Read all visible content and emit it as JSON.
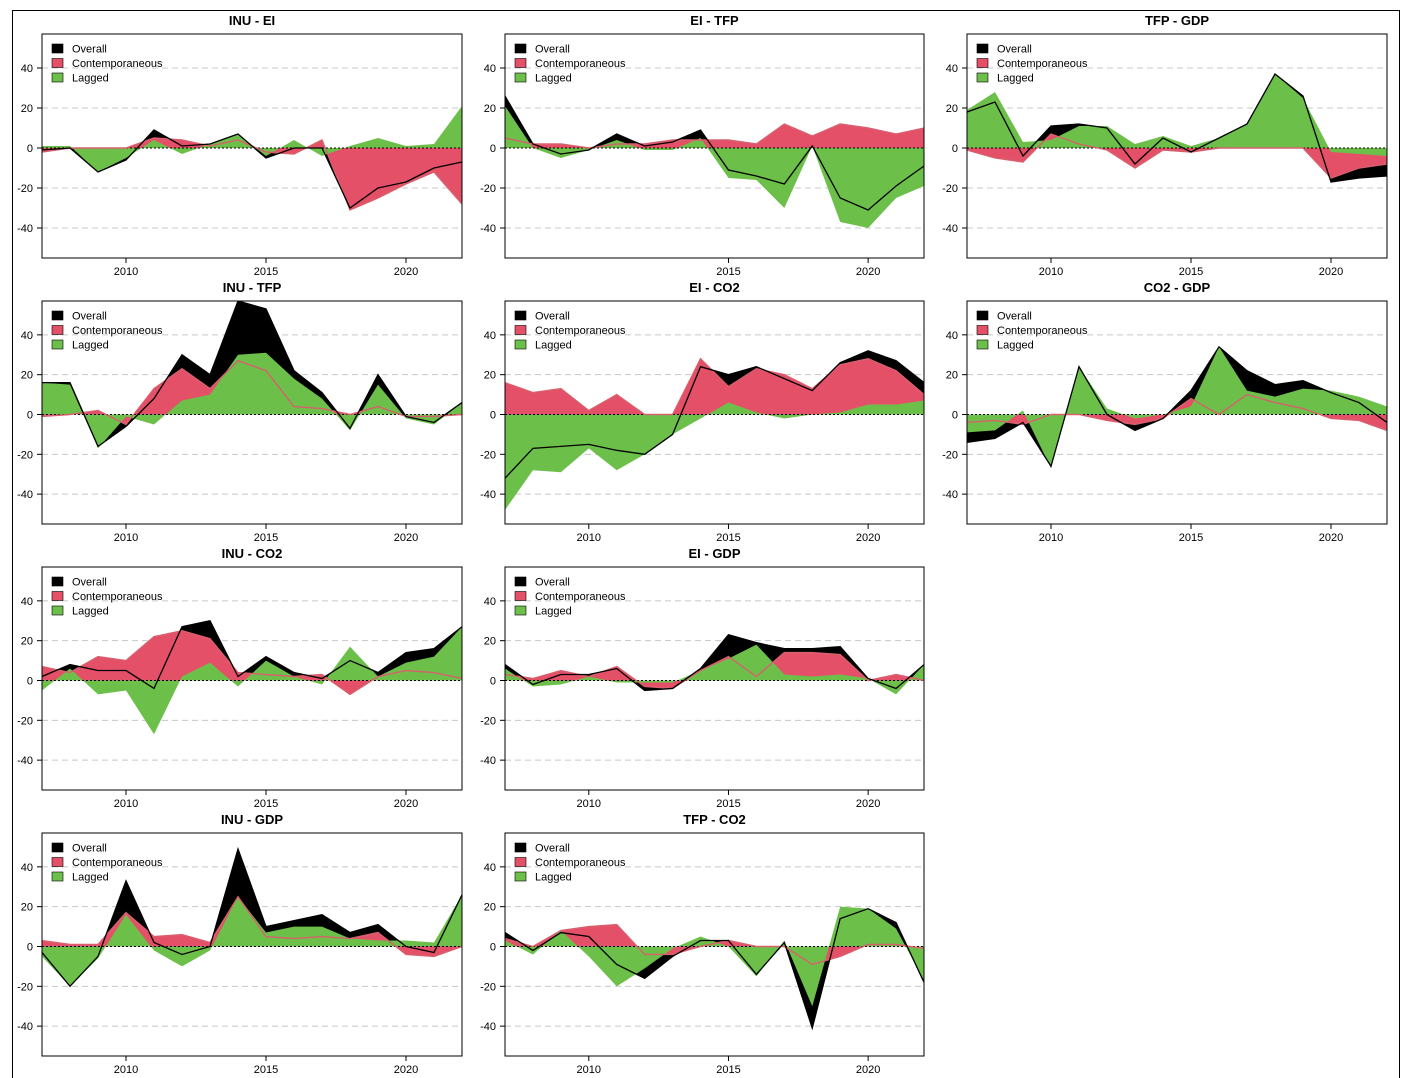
{
  "colors": {
    "overall": "#000000",
    "contemporaneous": "#e45068",
    "lagged": "#6cc04a"
  },
  "legend_labels": {
    "overall": "Overall",
    "contemporaneous": "Contemporaneous",
    "lagged": "Lagged"
  },
  "chart_data": [
    {
      "type": "area",
      "title": "INU - EI",
      "x": [
        2007,
        2008,
        2009,
        2010,
        2011,
        2012,
        2013,
        2014,
        2015,
        2016,
        2017,
        2018,
        2019,
        2020,
        2021,
        2022
      ],
      "series": [
        {
          "name": "Contemporaneous",
          "values": [
            -2,
            0,
            0,
            0,
            5,
            4,
            1,
            4,
            -2,
            -3,
            4,
            -31,
            -25,
            -18,
            -12,
            -28
          ]
        },
        {
          "name": "Lagged",
          "values": [
            1,
            1,
            -12,
            -5,
            4,
            -3,
            2,
            7,
            -4,
            4,
            -4,
            1,
            5,
            1,
            2,
            21
          ]
        },
        {
          "name": "Overall",
          "values": [
            -1,
            0,
            -12,
            -6,
            9,
            1,
            2,
            7,
            -5,
            0,
            0,
            -30,
            -20,
            -17,
            -10,
            -7
          ]
        }
      ],
      "xticks": [
        2010,
        2015,
        2020
      ],
      "yticks": [
        -40,
        -20,
        0,
        20,
        40
      ],
      "ylim": [
        -55,
        57
      ],
      "xlim": [
        2007,
        2022
      ],
      "legend_position": "top-left"
    },
    {
      "type": "area",
      "title": "EI - TFP",
      "x": [
        2007,
        2008,
        2009,
        2010,
        2011,
        2012,
        2013,
        2014,
        2015,
        2016,
        2017,
        2018,
        2019,
        2020,
        2021,
        2022
      ],
      "series": [
        {
          "name": "Contemporaneous",
          "values": [
            5,
            2,
            2,
            0,
            2,
            2,
            4,
            4,
            4,
            2,
            12,
            6,
            12,
            10,
            7,
            10
          ]
        },
        {
          "name": "Lagged",
          "values": [
            21,
            0,
            -5,
            -1,
            4,
            -1,
            -1,
            5,
            -15,
            -16,
            -30,
            1,
            -37,
            -40,
            -25,
            -19
          ]
        },
        {
          "name": "Overall",
          "values": [
            26,
            2,
            -3,
            -1,
            7,
            1,
            3,
            9,
            -11,
            -14,
            -18,
            1,
            -25,
            -31,
            -19,
            -9
          ]
        }
      ],
      "xticks": [
        2015,
        2020
      ],
      "yticks": [
        -40,
        -20,
        0,
        20,
        40
      ],
      "ylim": [
        -55,
        57
      ],
      "xlim": [
        2007,
        2022
      ],
      "legend_position": "top-left"
    },
    {
      "type": "area",
      "title": "TFP - GDP",
      "x": [
        2007,
        2008,
        2009,
        2010,
        2011,
        2012,
        2013,
        2014,
        2015,
        2016,
        2017,
        2018,
        2019,
        2020,
        2021,
        2022
      ],
      "series": [
        {
          "name": "Contemporaneous",
          "values": [
            -1,
            -5,
            -7,
            7,
            2,
            -1,
            -10,
            -1,
            -2,
            0,
            0,
            0,
            0,
            -15,
            -10,
            -8
          ]
        },
        {
          "name": "Lagged",
          "values": [
            19,
            28,
            3,
            4,
            11,
            11,
            2,
            6,
            1,
            5,
            12,
            37,
            25,
            -2,
            -3,
            -4
          ]
        },
        {
          "name": "Overall",
          "values": [
            18,
            23,
            -4,
            11,
            12,
            10,
            -8,
            5,
            -2,
            5,
            12,
            37,
            26,
            -17,
            -15,
            -14
          ]
        }
      ],
      "xticks": [
        2010,
        2015,
        2020
      ],
      "yticks": [
        -40,
        -20,
        0,
        20,
        40
      ],
      "ylim": [
        -55,
        57
      ],
      "xlim": [
        2007,
        2022
      ],
      "legend_position": "top-left"
    },
    {
      "type": "area",
      "title": "INU - TFP",
      "x": [
        2007,
        2008,
        2009,
        2010,
        2011,
        2012,
        2013,
        2014,
        2015,
        2016,
        2017,
        2018,
        2019,
        2020,
        2021,
        2022
      ],
      "series": [
        {
          "name": "Contemporaneous",
          "values": [
            -1,
            0,
            2,
            -5,
            13,
            23,
            13,
            27,
            22,
            4,
            3,
            0,
            4,
            -1,
            -1,
            0
          ]
        },
        {
          "name": "Lagged",
          "values": [
            16,
            15,
            -17,
            -1,
            -5,
            7,
            10,
            30,
            31,
            18,
            8,
            -8,
            15,
            -2,
            -5,
            6
          ]
        },
        {
          "name": "Overall",
          "values": [
            16,
            16,
            -16,
            -6,
            8,
            30,
            20,
            57,
            53,
            22,
            11,
            -7,
            20,
            -1,
            -4,
            6
          ]
        }
      ],
      "xticks": [
        2010,
        2015,
        2020
      ],
      "yticks": [
        -40,
        -20,
        0,
        20,
        40
      ],
      "ylim": [
        -55,
        57
      ],
      "xlim": [
        2007,
        2022
      ],
      "legend_position": "top-left"
    },
    {
      "type": "area",
      "title": "EI - CO2",
      "x": [
        2007,
        2008,
        2009,
        2010,
        2011,
        2012,
        2013,
        2014,
        2015,
        2016,
        2017,
        2018,
        2019,
        2020,
        2021,
        2022
      ],
      "series": [
        {
          "name": "Contemporaneous",
          "values": [
            16,
            11,
            13,
            2,
            10,
            0,
            0,
            28,
            14,
            23,
            20,
            13,
            25,
            28,
            22,
            10
          ]
        },
        {
          "name": "Lagged",
          "values": [
            -48,
            -28,
            -29,
            -17,
            -28,
            -20,
            -10,
            -2,
            6,
            1,
            -2,
            0,
            1,
            5,
            5,
            7
          ]
        },
        {
          "name": "Overall",
          "values": [
            -32,
            -17,
            -16,
            -15,
            -18,
            -20,
            -10,
            24,
            20,
            24,
            18,
            12,
            26,
            32,
            27,
            16
          ]
        }
      ],
      "xticks": [
        2010,
        2015,
        2020
      ],
      "yticks": [
        -40,
        -20,
        0,
        20,
        40
      ],
      "ylim": [
        -55,
        57
      ],
      "xlim": [
        2007,
        2022
      ],
      "legend_position": "top-left"
    },
    {
      "type": "area",
      "title": "CO2 - GDP",
      "x": [
        2007,
        2008,
        2009,
        2010,
        2011,
        2012,
        2013,
        2014,
        2015,
        2016,
        2017,
        2018,
        2019,
        2020,
        2021,
        2022
      ],
      "series": [
        {
          "name": "Contemporaneous",
          "values": [
            -4,
            -3,
            -5,
            0,
            0,
            -3,
            -5,
            -2,
            8,
            0,
            10,
            6,
            3,
            -2,
            -3,
            -8
          ]
        },
        {
          "name": "Lagged",
          "values": [
            -9,
            -8,
            2,
            -27,
            24,
            3,
            -2,
            0,
            4,
            34,
            12,
            9,
            13,
            12,
            9,
            4
          ]
        },
        {
          "name": "Overall",
          "values": [
            -14,
            -12,
            -4,
            -26,
            24,
            0,
            -8,
            -2,
            12,
            34,
            22,
            15,
            17,
            11,
            6,
            -4
          ]
        }
      ],
      "xticks": [
        2010,
        2015,
        2020
      ],
      "yticks": [
        -40,
        -20,
        0,
        20,
        40
      ],
      "ylim": [
        -55,
        57
      ],
      "xlim": [
        2007,
        2022
      ],
      "legend_position": "top-left"
    },
    {
      "type": "area",
      "title": "INU - CO2",
      "x": [
        2007,
        2008,
        2009,
        2010,
        2011,
        2012,
        2013,
        2014,
        2015,
        2016,
        2017,
        2018,
        2019,
        2020,
        2021,
        2022
      ],
      "series": [
        {
          "name": "Contemporaneous",
          "values": [
            7,
            4,
            12,
            10,
            22,
            25,
            21,
            4,
            3,
            2,
            3,
            -7,
            2,
            5,
            4,
            1
          ]
        },
        {
          "name": "Lagged",
          "values": [
            -5,
            6,
            -7,
            -5,
            -27,
            2,
            9,
            -3,
            10,
            2,
            -2,
            17,
            2,
            9,
            12,
            27
          ]
        },
        {
          "name": "Overall",
          "values": [
            2,
            8,
            5,
            5,
            -4,
            27,
            30,
            2,
            12,
            4,
            1,
            10,
            4,
            14,
            16,
            27
          ]
        }
      ],
      "xticks": [
        2010,
        2015,
        2020
      ],
      "yticks": [
        -40,
        -20,
        0,
        20,
        40
      ],
      "ylim": [
        -55,
        57
      ],
      "xlim": [
        2007,
        2022
      ],
      "legend_position": "top-left"
    },
    {
      "type": "area",
      "title": "EI - GDP",
      "x": [
        2007,
        2008,
        2009,
        2010,
        2011,
        2012,
        2013,
        2014,
        2015,
        2016,
        2017,
        2018,
        2019,
        2020,
        2021,
        2022
      ],
      "series": [
        {
          "name": "Contemporaneous",
          "values": [
            3,
            1,
            5,
            2,
            7,
            -3,
            -4,
            5,
            12,
            2,
            14,
            14,
            13,
            0,
            3,
            0
          ]
        },
        {
          "name": "Lagged",
          "values": [
            6,
            -3,
            -2,
            2,
            -1,
            -1,
            -1,
            5,
            11,
            18,
            3,
            2,
            3,
            1,
            -7,
            8
          ]
        },
        {
          "name": "Overall",
          "values": [
            8,
            -2,
            3,
            3,
            6,
            -5,
            -4,
            6,
            23,
            19,
            16,
            16,
            17,
            1,
            -4,
            8
          ]
        }
      ],
      "xticks": [
        2010,
        2015,
        2020
      ],
      "yticks": [
        -40,
        -20,
        0,
        20,
        40
      ],
      "ylim": [
        -55,
        57
      ],
      "xlim": [
        2007,
        2022
      ],
      "legend_position": "top-left"
    },
    {
      "type": "area",
      "title": "INU - GDP",
      "x": [
        2007,
        2008,
        2009,
        2010,
        2011,
        2012,
        2013,
        2014,
        2015,
        2016,
        2017,
        2018,
        2019,
        2020,
        2021,
        2022
      ],
      "series": [
        {
          "name": "Contemporaneous",
          "values": [
            3,
            1,
            1,
            17,
            5,
            6,
            2,
            25,
            5,
            4,
            5,
            4,
            7,
            -4,
            -5,
            0
          ]
        },
        {
          "name": "Lagged",
          "values": [
            -5,
            -20,
            -6,
            16,
            -2,
            -10,
            -2,
            25,
            7,
            10,
            10,
            4,
            3,
            3,
            2,
            26
          ]
        },
        {
          "name": "Overall",
          "values": [
            -3,
            -20,
            -5,
            33,
            2,
            -4,
            0,
            49,
            10,
            13,
            16,
            7,
            11,
            0,
            -3,
            26
          ]
        }
      ],
      "xticks": [
        2010,
        2015,
        2020
      ],
      "yticks": [
        -40,
        -20,
        0,
        20,
        40
      ],
      "ylim": [
        -55,
        57
      ],
      "xlim": [
        2007,
        2022
      ],
      "legend_position": "top-left"
    },
    {
      "type": "area",
      "title": "TFP - CO2",
      "x": [
        2007,
        2008,
        2009,
        2010,
        2011,
        2012,
        2013,
        2014,
        2015,
        2016,
        2017,
        2018,
        2019,
        2020,
        2021,
        2022
      ],
      "series": [
        {
          "name": "Contemporaneous",
          "values": [
            4,
            0,
            8,
            10,
            11,
            -4,
            -4,
            0,
            3,
            0,
            0,
            -9,
            -5,
            1,
            1,
            -1
          ]
        },
        {
          "name": "Lagged",
          "values": [
            3,
            -4,
            8,
            -5,
            -20,
            -11,
            -1,
            5,
            0,
            -15,
            3,
            -30,
            20,
            19,
            9,
            -17
          ]
        },
        {
          "name": "Overall",
          "values": [
            7,
            -2,
            7,
            5,
            -9,
            -16,
            -5,
            3,
            3,
            -14,
            2,
            -41,
            14,
            19,
            12,
            -18
          ]
        }
      ],
      "xticks": [
        2010,
        2015,
        2020
      ],
      "yticks": [
        -40,
        -20,
        0,
        20,
        40
      ],
      "ylim": [
        -55,
        57
      ],
      "xlim": [
        2007,
        2022
      ],
      "legend_position": "top-left"
    }
  ]
}
